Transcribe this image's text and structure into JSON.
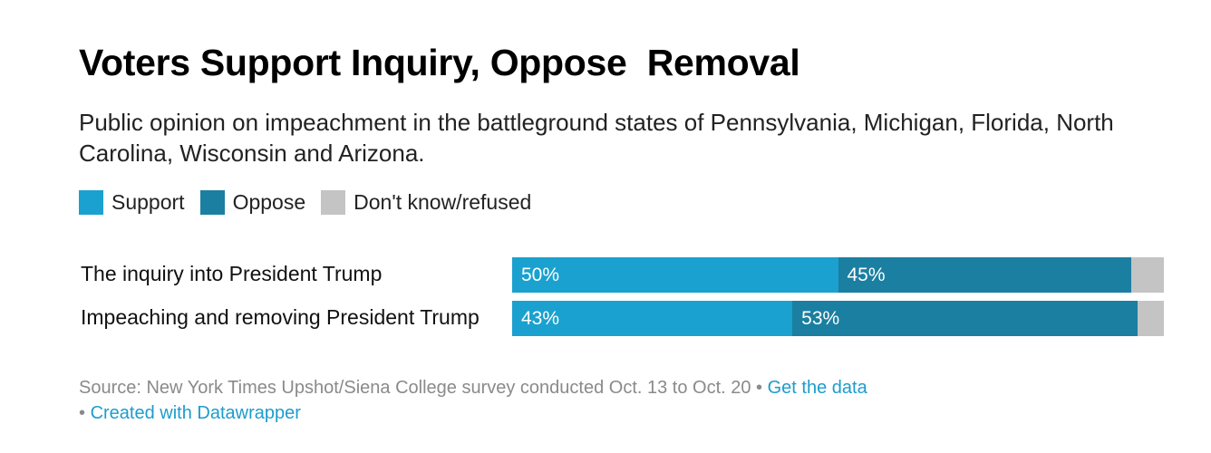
{
  "title": "Voters Support Inquiry, Oppose  Removal",
  "subtitle": "Public opinion on impeachment in the battleground states of Pennsylvania, Michigan, Florida, North Carolina, Wisconsin and Arizona.",
  "colors": {
    "support": "#1aa1cf",
    "oppose": "#1b7fa1",
    "dont_know": "#c4c4c4"
  },
  "legend": [
    {
      "key": "support",
      "label": "Support"
    },
    {
      "key": "oppose",
      "label": "Oppose"
    },
    {
      "key": "dont_know",
      "label": "Don't know/refused"
    }
  ],
  "chart_data": {
    "type": "bar",
    "orientation": "horizontal",
    "stacked": true,
    "title": "Voters Support Inquiry, Oppose  Removal",
    "categories": [
      "The inquiry into President Trump",
      "Impeaching and removing President Trump"
    ],
    "series": [
      {
        "name": "Support",
        "key": "support",
        "values": [
          50,
          43
        ],
        "labels": [
          "50%",
          "43%"
        ]
      },
      {
        "name": "Oppose",
        "key": "oppose",
        "values": [
          45,
          53
        ],
        "labels": [
          "45%",
          "53%"
        ]
      },
      {
        "name": "Don't know/refused",
        "key": "dont_know",
        "values": [
          5,
          4
        ],
        "labels": [
          "",
          ""
        ]
      }
    ],
    "xlim": [
      0,
      100
    ],
    "xlabel": "",
    "ylabel": ""
  },
  "footer": {
    "source": "Source: New York Times Upshot/Siena College survey conducted Oct. 13 to Oct. 20",
    "separator": " • ",
    "get_data": "Get the data",
    "bullet": "• ",
    "created_with": "Created with Datawrapper"
  }
}
